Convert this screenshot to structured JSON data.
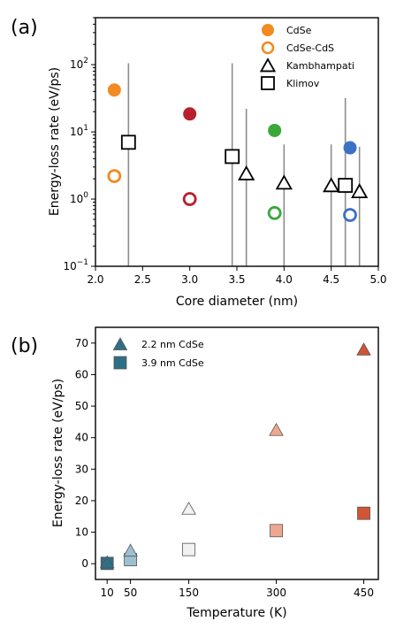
{
  "chart_data": [
    {
      "type": "scatter",
      "panel_label": "(a)",
      "xlabel": "Core diameter (nm)",
      "ylabel": "Energy-loss rate (eV/ps)",
      "xlim": [
        2.0,
        5.0
      ],
      "ylim": [
        0.1,
        500
      ],
      "yscale": "log",
      "xticks": [
        "2.0",
        "2.5",
        "3.0",
        "3.5",
        "4.0",
        "4.5",
        "5.0"
      ],
      "yticks": [
        "10^-1",
        "10^0",
        "10^1",
        "10^2"
      ],
      "legend_position": "top-right",
      "legend": [
        "CdSe",
        "CdSe-CdS",
        "Kambhampati",
        "Klimov"
      ],
      "series": [
        {
          "name": "CdSe",
          "marker": "filled-circle",
          "points": [
            {
              "x": 2.2,
              "y": 42,
              "color": "#f28a22"
            },
            {
              "x": 3.0,
              "y": 18.5,
              "color": "#b8202e"
            },
            {
              "x": 3.9,
              "y": 10.5,
              "color": "#3aa83a"
            },
            {
              "x": 4.7,
              "y": 5.8,
              "color": "#3b72c4"
            }
          ]
        },
        {
          "name": "CdSe-CdS",
          "marker": "open-circle",
          "points": [
            {
              "x": 2.2,
              "y": 2.2,
              "color": "#f28a22"
            },
            {
              "x": 3.0,
              "y": 1.0,
              "color": "#b8202e"
            },
            {
              "x": 3.9,
              "y": 0.62,
              "color": "#3aa83a"
            },
            {
              "x": 4.7,
              "y": 0.58,
              "color": "#3b72c4"
            }
          ]
        },
        {
          "name": "Kambhampati",
          "marker": "open-triangle",
          "points": [
            {
              "x": 3.6,
              "y": 2.4,
              "err_low": 0.1,
              "err_high": 22
            },
            {
              "x": 4.0,
              "y": 1.75,
              "err_low": 0.1,
              "err_high": 6.5
            },
            {
              "x": 4.5,
              "y": 1.6,
              "err_low": 0.1,
              "err_high": 6.5
            },
            {
              "x": 4.8,
              "y": 1.3,
              "err_low": 0.1,
              "err_high": 6.0
            }
          ]
        },
        {
          "name": "Klimov",
          "marker": "open-square",
          "points": [
            {
              "x": 2.35,
              "y": 7.0,
              "err_low": 0.1,
              "err_high": 105
            },
            {
              "x": 3.45,
              "y": 4.3,
              "err_low": 0.1,
              "err_high": 105
            },
            {
              "x": 4.65,
              "y": 1.6,
              "err_low": 0.1,
              "err_high": 32
            }
          ]
        }
      ]
    },
    {
      "type": "scatter",
      "panel_label": "(b)",
      "xlabel": "Temperature (K)",
      "ylabel": "Energy-loss rate (eV/ps)",
      "xlim": [
        -10,
        475
      ],
      "ylim": [
        -5,
        75
      ],
      "xticks": [
        "10",
        "50",
        "150",
        "300",
        "450"
      ],
      "yticks": [
        "0",
        "10",
        "20",
        "30",
        "40",
        "50",
        "60",
        "70"
      ],
      "legend_position": "top-left",
      "legend": [
        "2.2 nm CdSe",
        "3.9 nm CdSe"
      ],
      "legend_color": "#2f6f86",
      "series": [
        {
          "name": "2.2 nm CdSe",
          "marker": "filled-triangle",
          "points": [
            {
              "x": 10,
              "y": 0.5,
              "color": "#2f6f86"
            },
            {
              "x": 50,
              "y": 4.2,
              "color": "#9cc0d0"
            },
            {
              "x": 150,
              "y": 17.5,
              "color": "#f2f2f2"
            },
            {
              "x": 300,
              "y": 42.5,
              "color": "#efa890"
            },
            {
              "x": 450,
              "y": 68,
              "color": "#cf5535"
            }
          ]
        },
        {
          "name": "3.9 nm CdSe",
          "marker": "filled-square",
          "points": [
            {
              "x": 10,
              "y": 0.1,
              "color": "#2f6f86"
            },
            {
              "x": 50,
              "y": 1.3,
              "color": "#9cc0d0"
            },
            {
              "x": 150,
              "y": 4.5,
              "color": "#f2f2f2"
            },
            {
              "x": 300,
              "y": 10.5,
              "color": "#efa890"
            },
            {
              "x": 450,
              "y": 16,
              "color": "#cf5535"
            }
          ]
        }
      ]
    }
  ]
}
